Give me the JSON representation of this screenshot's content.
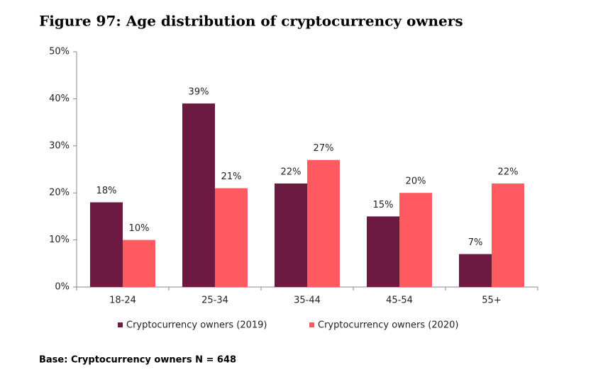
{
  "chart_data": {
    "type": "bar",
    "title": "Figure 97: Age distribution of cryptocurrency owners",
    "categories": [
      "18-24",
      "25-34",
      "35-44",
      "45-54",
      "55+"
    ],
    "series": [
      {
        "name": "Cryptocurrency owners (2019)",
        "color": "#6d1a42",
        "values": [
          18,
          39,
          22,
          15,
          7
        ],
        "value_labels": [
          "18%",
          "39%",
          "22%",
          "15%",
          "7%"
        ]
      },
      {
        "name": "Cryptocurrency owners (2020)",
        "color": "#ff5a5f",
        "values": [
          10,
          21,
          27,
          20,
          22
        ],
        "value_labels": [
          "10%",
          "21%",
          "27%",
          "20%",
          "22%"
        ]
      }
    ],
    "ylim": [
      0,
      50
    ],
    "yticks": [
      {
        "value": 0,
        "label": "0%"
      },
      {
        "value": 10,
        "label": "10%"
      },
      {
        "value": 20,
        "label": "20%"
      },
      {
        "value": 30,
        "label": "30%"
      },
      {
        "value": 40,
        "label": "40%"
      },
      {
        "value": 50,
        "label": "50%"
      }
    ],
    "grid": false,
    "legend": "bottom",
    "footnote": "Base: Cryptocurrency owners N = 648"
  }
}
